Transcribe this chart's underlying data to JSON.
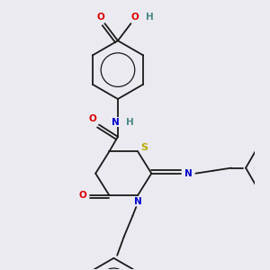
{
  "bg_color": "#eaeaf0",
  "bond_color": "#1a1a1a",
  "atom_colors": {
    "O": "#dd0000",
    "N": "#0000cc",
    "S": "#bbaa00",
    "H": "#4a8888",
    "C": "#1a1a1a"
  }
}
